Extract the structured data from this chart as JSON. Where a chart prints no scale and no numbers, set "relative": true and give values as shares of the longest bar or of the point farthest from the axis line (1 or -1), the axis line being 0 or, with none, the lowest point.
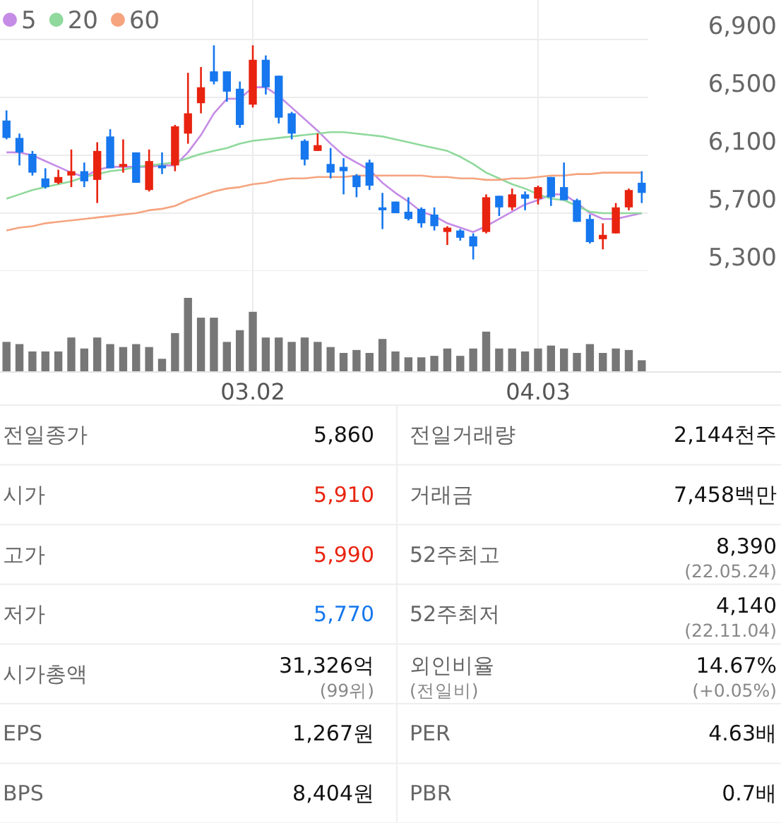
{
  "chart_data": [
    {
      "type": "candlestick",
      "categories": [
        null,
        null,
        null,
        null,
        null,
        null,
        null,
        null,
        null,
        null,
        null,
        null,
        null,
        null,
        null,
        null,
        null,
        null,
        null,
        "03.02",
        null,
        null,
        null,
        null,
        null,
        null,
        null,
        null,
        null,
        null,
        null,
        null,
        null,
        null,
        null,
        null,
        null,
        null,
        null,
        null,
        null,
        "04.03",
        null,
        null,
        null,
        null,
        null,
        null,
        null,
        null
      ],
      "ohlc": [
        [
          6340,
          6410,
          6210,
          6220
        ],
        [
          6220,
          6250,
          6030,
          6120
        ],
        [
          6110,
          6130,
          5960,
          5980
        ],
        [
          5940,
          6010,
          5870,
          5880
        ],
        [
          5910,
          6000,
          5900,
          5950
        ],
        [
          5960,
          6140,
          5880,
          5990
        ],
        [
          5990,
          6050,
          5880,
          5920
        ],
        [
          5930,
          6190,
          5770,
          6130
        ],
        [
          6230,
          6280,
          6010,
          6010
        ],
        [
          6020,
          6210,
          5980,
          6040
        ],
        [
          6120,
          6120,
          5910,
          5910
        ],
        [
          5860,
          6140,
          5850,
          6060
        ],
        [
          6030,
          6120,
          5970,
          6010
        ],
        [
          6030,
          6310,
          5990,
          6300
        ],
        [
          6250,
          6670,
          6180,
          6390
        ],
        [
          6460,
          6710,
          6390,
          6570
        ],
        [
          6680,
          6860,
          6590,
          6610
        ],
        [
          6680,
          6680,
          6470,
          6540
        ],
        [
          6560,
          6610,
          6290,
          6310
        ],
        [
          6450,
          6860,
          6430,
          6760
        ],
        [
          6760,
          6790,
          6520,
          6570
        ],
        [
          6650,
          6650,
          6320,
          6360
        ],
        [
          6390,
          6400,
          6210,
          6250
        ],
        [
          6200,
          6210,
          6030,
          6070
        ],
        [
          6130,
          6250,
          6130,
          6170
        ],
        [
          6040,
          6150,
          5940,
          5980
        ],
        [
          6020,
          6080,
          5830,
          5990
        ],
        [
          5960,
          5970,
          5810,
          5880
        ],
        [
          6050,
          6070,
          5860,
          5890
        ],
        [
          5740,
          5840,
          5590,
          5720
        ],
        [
          5780,
          5780,
          5700,
          5700
        ],
        [
          5710,
          5810,
          5650,
          5660
        ],
        [
          5730,
          5740,
          5600,
          5630
        ],
        [
          5690,
          5740,
          5580,
          5610
        ],
        [
          5570,
          5610,
          5480,
          5600
        ],
        [
          5580,
          5590,
          5510,
          5530
        ],
        [
          5540,
          5560,
          5380,
          5470
        ],
        [
          5570,
          5830,
          5560,
          5810
        ],
        [
          5820,
          5820,
          5680,
          5740
        ],
        [
          5740,
          5870,
          5720,
          5830
        ],
        [
          5830,
          5850,
          5720,
          5800
        ],
        [
          5800,
          5890,
          5760,
          5880
        ],
        [
          5950,
          5950,
          5750,
          5810
        ],
        [
          5880,
          6050,
          5790,
          5790
        ],
        [
          5790,
          5800,
          5640,
          5640
        ],
        [
          5660,
          5690,
          5490,
          5500
        ],
        [
          5520,
          5630,
          5450,
          5550
        ],
        [
          5560,
          5770,
          5560,
          5740
        ],
        [
          5740,
          5870,
          5720,
          5860
        ],
        [
          5910,
          5990,
          5770,
          5840
        ]
      ],
      "series": [
        {
          "name": "5",
          "type": "line",
          "color": "#c58ce6",
          "values": [
            6120,
            6120,
            6100,
            6060,
            6020,
            5980,
            5950,
            6000,
            6020,
            6020,
            6020,
            6020,
            6030,
            6030,
            6120,
            6240,
            6390,
            6490,
            6490,
            6570,
            6570,
            6510,
            6430,
            6350,
            6270,
            6180,
            6100,
            6050,
            6000,
            5910,
            5840,
            5780,
            5710,
            5680,
            5630,
            5600,
            5570,
            5610,
            5660,
            5710,
            5760,
            5790,
            5830,
            5830,
            5770,
            5700,
            5660,
            5660,
            5680,
            5700
          ]
        },
        {
          "name": "20",
          "type": "line",
          "color": "#8fd99c",
          "values": [
            5800,
            5830,
            5860,
            5880,
            5900,
            5920,
            5950,
            5970,
            5990,
            6000,
            6020,
            6030,
            6040,
            6050,
            6080,
            6110,
            6130,
            6150,
            6180,
            6200,
            6210,
            6220,
            6230,
            6240,
            6250,
            6260,
            6260,
            6250,
            6240,
            6230,
            6210,
            6190,
            6170,
            6150,
            6130,
            6090,
            6040,
            5980,
            5940,
            5900,
            5870,
            5830,
            5800,
            5790,
            5750,
            5710,
            5700,
            5700,
            5700,
            5700
          ]
        },
        {
          "name": "60",
          "type": "line",
          "color": "#f5a47f",
          "values": [
            5580,
            5600,
            5610,
            5630,
            5640,
            5650,
            5660,
            5670,
            5680,
            5690,
            5700,
            5720,
            5730,
            5750,
            5790,
            5820,
            5850,
            5870,
            5880,
            5900,
            5910,
            5930,
            5940,
            5940,
            5950,
            5950,
            5950,
            5960,
            5960,
            5960,
            5960,
            5960,
            5960,
            5950,
            5950,
            5940,
            5940,
            5930,
            5930,
            5940,
            5940,
            5950,
            5960,
            5960,
            5970,
            5970,
            5980,
            5980,
            5980,
            5980
          ]
        }
      ],
      "ylim": [
        5300,
        6900
      ],
      "yticks": [
        {
          "value": 6900,
          "label": "6,900"
        },
        {
          "value": 6500,
          "label": "6,500"
        },
        {
          "value": 6100,
          "label": "6,100"
        },
        {
          "value": 5700,
          "label": "5,700"
        },
        {
          "value": 5300,
          "label": "5,300"
        }
      ],
      "grid": true,
      "legend": "top left",
      "tick_labels": "y"
    },
    {
      "type": "bar",
      "relative": true,
      "color": "#777777",
      "grid": "x",
      "tick_labels": "x",
      "categories": [
        null,
        null,
        null,
        null,
        null,
        null,
        null,
        null,
        null,
        null,
        null,
        null,
        null,
        null,
        null,
        null,
        null,
        null,
        null,
        "03.02",
        null,
        null,
        null,
        null,
        null,
        null,
        null,
        null,
        null,
        null,
        null,
        null,
        null,
        null,
        null,
        null,
        null,
        null,
        null,
        null,
        null,
        "04.03",
        null,
        null,
        null,
        null,
        null,
        null,
        null,
        null
      ],
      "values": [
        0.4,
        0.37,
        0.27,
        0.27,
        0.27,
        0.46,
        0.31,
        0.46,
        0.37,
        0.33,
        0.37,
        0.33,
        0.17,
        0.52,
        1,
        0.73,
        0.73,
        0.4,
        0.56,
        0.81,
        0.46,
        0.46,
        0.4,
        0.46,
        0.4,
        0.33,
        0.25,
        0.29,
        0.25,
        0.44,
        0.27,
        0.19,
        0.19,
        0.21,
        0.31,
        0.21,
        0.31,
        0.54,
        0.31,
        0.31,
        0.27,
        0.31,
        0.35,
        0.31,
        0.25,
        0.37,
        0.25,
        0.31,
        0.29,
        0.15
      ]
    },
    {
      "type": "other",
      "annotations": [
        "전일종가",
        "5,860",
        "전일거래량",
        "2,144천주",
        "시가",
        "5,910",
        "거래금",
        "7,458백만",
        "고가",
        "5,990",
        "52주최고",
        "8,390\n(22.05.24)",
        "저가",
        "5,770",
        "52주최저",
        "4,140\n(22.11.04)",
        "시가총액",
        "31,326억\n(99위)",
        "외인비율\n(전일비)",
        "14.67%\n(+0.05%)",
        "EPS",
        "1,267원",
        "PER",
        "4.63배",
        "BPS",
        "8,404원",
        "PBR",
        "0.7배"
      ],
      "colors": [
        null,
        null,
        null,
        null,
        null,
        "#e8230f",
        null,
        null,
        null,
        "#e8230f",
        null,
        null,
        null,
        "#1677ee",
        null,
        null,
        null,
        null,
        null,
        null,
        null,
        null,
        null,
        null,
        null,
        null,
        null,
        null
      ]
    }
  ]
}
